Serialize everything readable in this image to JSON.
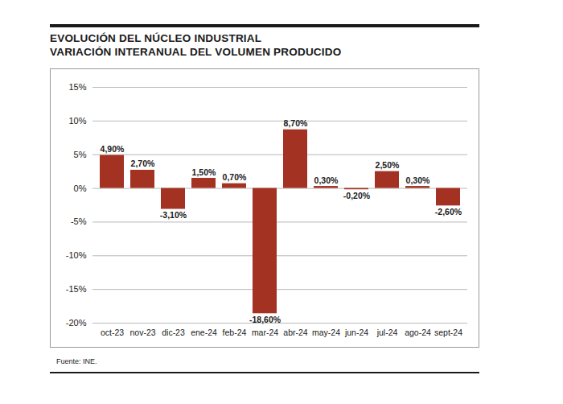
{
  "chart_data": {
    "type": "bar",
    "title": "EVOLUCIÓN DEL NÚCLEO INDUSTRIAL",
    "subtitle": "VARIACIÓN INTERANUAL DEL VOLUMEN PRODUCIDO",
    "caption": "Fuente: INE.",
    "categories": [
      "oct-23",
      "nov-23",
      "dic-23",
      "ene-24",
      "feb-24",
      "mar-24",
      "abr-24",
      "may-24",
      "jun-24",
      "jul-24",
      "ago-24",
      "sept-24"
    ],
    "values": [
      4.9,
      2.7,
      -3.1,
      1.5,
      0.7,
      -18.6,
      8.7,
      0.3,
      -0.2,
      2.5,
      0.3,
      -2.6
    ],
    "value_labels": [
      "4,90%",
      "2,70%",
      "-3,10%",
      "1,50%",
      "0,70%",
      "-18,60%",
      "8,70%",
      "0,30%",
      "-0,20%",
      "2,50%",
      "0,30%",
      "-2,60%"
    ],
    "color": "#a33222",
    "ylim": [
      -20,
      15
    ],
    "yticks": [
      {
        "value": -20,
        "label": "-20%"
      },
      {
        "value": -15,
        "label": "-15%"
      },
      {
        "value": -10,
        "label": "-10%"
      },
      {
        "value": -5,
        "label": "-5%"
      },
      {
        "value": 0,
        "label": "0%"
      },
      {
        "value": 5,
        "label": "5%"
      },
      {
        "value": 10,
        "label": "10%"
      },
      {
        "value": 15,
        "label": "15%"
      }
    ],
    "grid": true,
    "data_labels": true
  }
}
